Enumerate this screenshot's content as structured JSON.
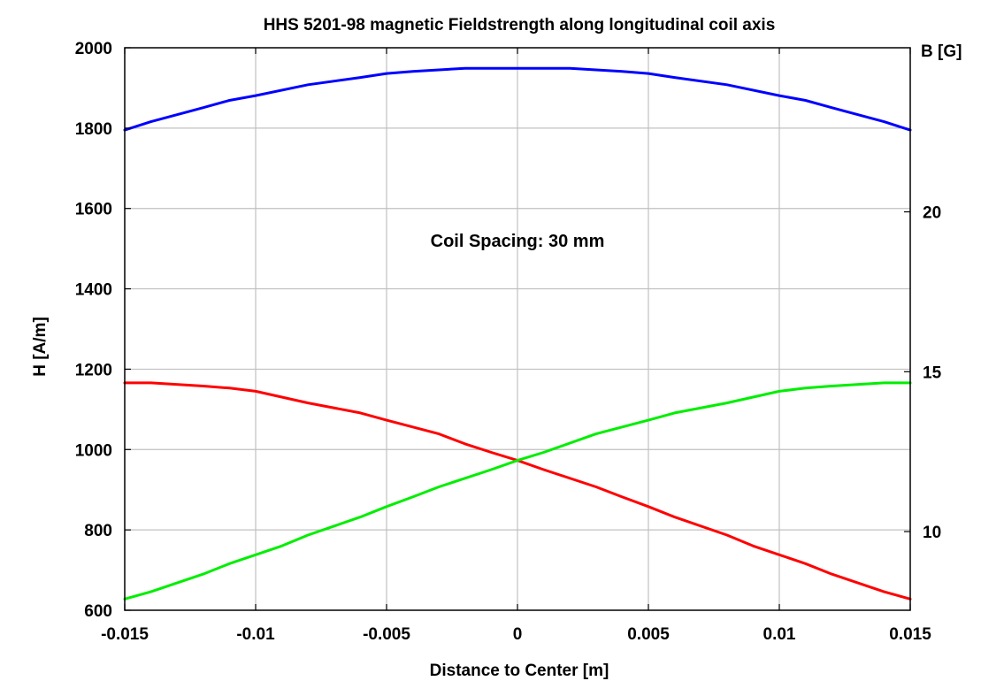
{
  "chart_data": {
    "type": "line",
    "title": "HHS 5201-98 magnetic Fieldstrength along longitudinal coil axis",
    "xlabel": "Distance to Center [m]",
    "ylabel": "H [A/m]",
    "y2label": "B [G]",
    "xlim": [
      -0.015,
      0.015
    ],
    "ylim": [
      600,
      2000
    ],
    "y2_per_y": 0.012566,
    "xticks": [
      "-0.015",
      "-0.01",
      "-0.005",
      "0",
      "0.005",
      "0.01",
      "0.015"
    ],
    "xtick_values": [
      -0.015,
      -0.01,
      -0.005,
      0,
      0.005,
      0.01,
      0.015
    ],
    "yticks": [
      "600",
      "800",
      "1000",
      "1200",
      "1400",
      "1600",
      "1800",
      "2000"
    ],
    "ytick_values": [
      600,
      800,
      1000,
      1200,
      1400,
      1600,
      1800,
      2000
    ],
    "y2ticks": [
      "10",
      "15",
      "20"
    ],
    "y2tick_values": [
      10,
      15,
      20
    ],
    "grid": true,
    "annotations": [
      {
        "text": "Coil Spacing: 30 mm",
        "x": 0.0,
        "y": 1505
      }
    ],
    "series": [
      {
        "color": "#0000ff",
        "x": [
          -0.015,
          -0.014,
          -0.012,
          -0.011,
          -0.01,
          -0.008,
          -0.006,
          -0.005,
          -0.004,
          -0.002,
          0,
          0.002,
          0.004,
          0.005,
          0.006,
          0.008,
          0.01,
          0.011,
          0.012,
          0.014,
          0.015
        ],
        "y": [
          1795,
          1816,
          1851,
          1869,
          1881,
          1908,
          1926,
          1936,
          1941,
          1949,
          1949,
          1949,
          1941,
          1936,
          1926,
          1908,
          1881,
          1869,
          1851,
          1816,
          1795
        ]
      },
      {
        "color": "#ff0000",
        "x": [
          -0.015,
          -0.014,
          -0.012,
          -0.011,
          -0.01,
          -0.008,
          -0.006,
          -0.005,
          -0.003,
          -0.002,
          -0.001,
          0,
          0.001,
          0.003,
          0.004,
          0.005,
          0.006,
          0.008,
          0.009,
          0.01,
          0.011,
          0.012,
          0.014,
          0.015
        ],
        "y": [
          1166,
          1166,
          1158,
          1153,
          1145,
          1116,
          1091,
          1073,
          1039,
          1014,
          993,
          973,
          950,
          907,
          882,
          858,
          832,
          787,
          760,
          738,
          716,
          690,
          646,
          628
        ]
      },
      {
        "color": "#00ee00",
        "x": [
          -0.015,
          -0.014,
          -0.012,
          -0.011,
          -0.01,
          -0.009,
          -0.008,
          -0.006,
          -0.005,
          -0.004,
          -0.003,
          -0.001,
          0,
          0.001,
          0.003,
          0.004,
          0.005,
          0.006,
          0.008,
          0.01,
          0.011,
          0.012,
          0.014,
          0.015
        ],
        "y": [
          628,
          646,
          690,
          716,
          738,
          760,
          787,
          832,
          858,
          882,
          907,
          950,
          973,
          993,
          1039,
          1056,
          1073,
          1091,
          1116,
          1145,
          1153,
          1158,
          1166,
          1166
        ]
      }
    ]
  }
}
